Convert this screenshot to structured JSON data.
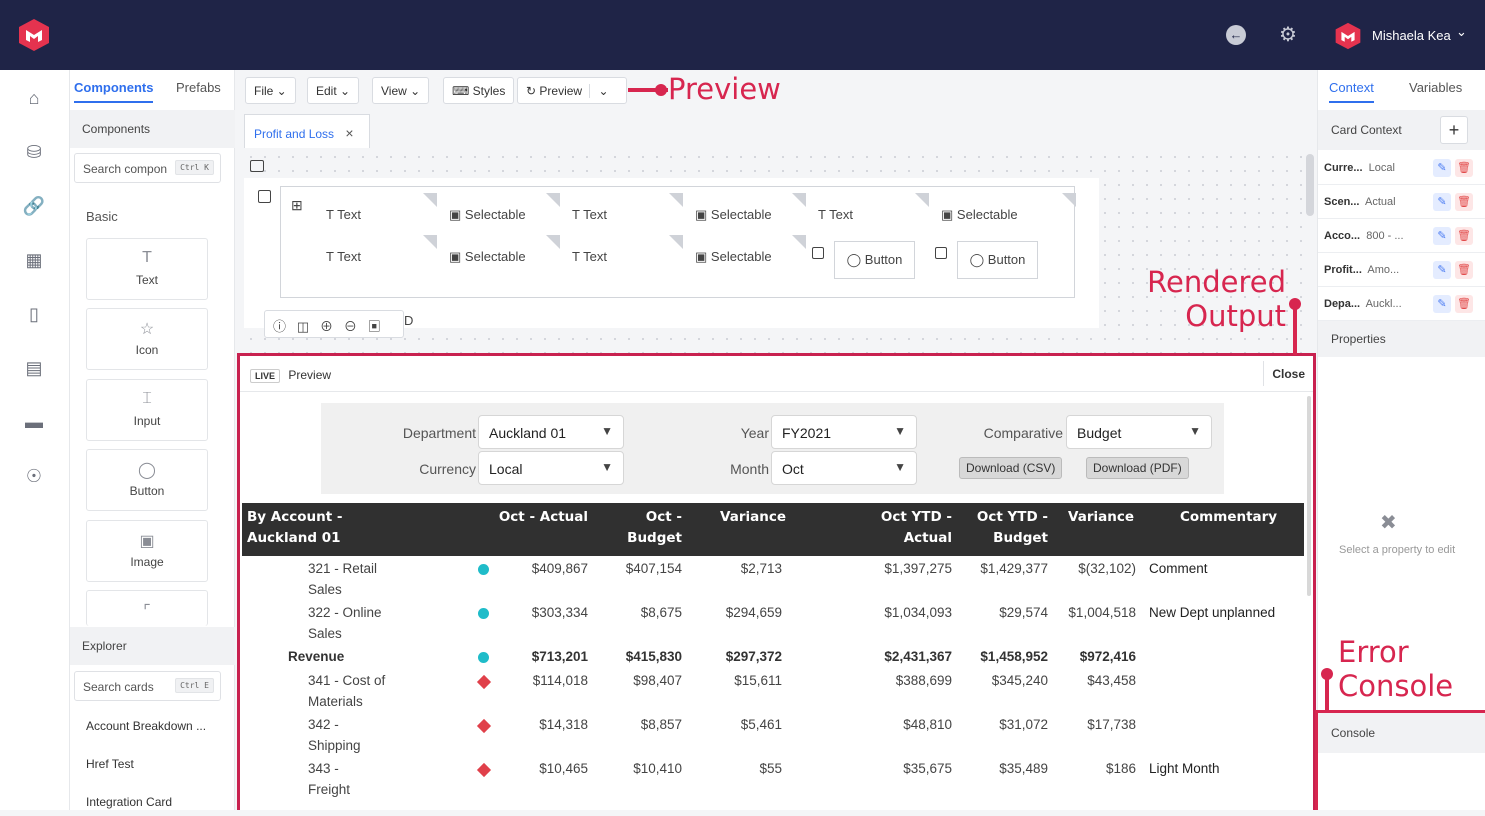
{
  "header": {
    "user_name": "Mishaela Kea",
    "user_chevron": "⌄"
  },
  "rail": {
    "icons": [
      "home-icon",
      "database-icon",
      "link-icon",
      "hierarchy-icon",
      "folder-icon",
      "book-icon",
      "chat-icon",
      "lifebuoy-icon"
    ]
  },
  "left_panel": {
    "tabs": [
      "Components",
      "Prefabs"
    ],
    "components_heading": "Components",
    "search_placeholder": "Search compon",
    "search_shortcut": "Ctrl K",
    "basic_heading": "Basic",
    "tiles": [
      {
        "label": "Text",
        "icon": "T"
      },
      {
        "label": "Icon",
        "icon": "☆"
      },
      {
        "label": "Input",
        "icon": "⌶"
      },
      {
        "label": "Button",
        "icon": "◯"
      },
      {
        "label": "Image",
        "icon": "▣"
      }
    ],
    "explorer_heading": "Explorer",
    "explorer_search": "Search cards",
    "explorer_shortcut": "Ctrl E",
    "explorer_items": [
      "Account Breakdown ...",
      "Href Test",
      "Integration Card"
    ]
  },
  "toolbar": {
    "file": "File",
    "edit": "Edit",
    "view": "View",
    "styles": "Styles",
    "preview": "Preview"
  },
  "document_tab": "Profit and Loss",
  "designer": {
    "row1": [
      "Text",
      "Selectable",
      "Text",
      "Selectable",
      "Text",
      "Selectable"
    ],
    "row2": [
      "Text",
      "Selectable",
      "Text",
      "Selectable",
      "Button",
      "Button"
    ],
    "partial_label": "D"
  },
  "right_panel": {
    "tabs": [
      "Context",
      "Variables"
    ],
    "card_context": "Card Context",
    "rows": [
      {
        "name": "Curre...",
        "value": "Local"
      },
      {
        "name": "Scen...",
        "value": "Actual"
      },
      {
        "name": "Acco...",
        "value": "800 - ..."
      },
      {
        "name": "Profit...",
        "value": "Amo..."
      },
      {
        "name": "Depa...",
        "value": "Auckl..."
      }
    ],
    "properties": "Properties",
    "properties_hint": "Select a property to edit",
    "console": "Console"
  },
  "live": {
    "badge": "LIVE",
    "title": "Preview",
    "close": "Close",
    "filters": {
      "department_label": "Department",
      "department_value": "Auckland 01",
      "year_label": "Year",
      "year_value": "FY2021",
      "comparative_label": "Comparative",
      "comparative_value": "Budget",
      "currency_label": "Currency",
      "currency_value": "Local",
      "month_label": "Month",
      "month_value": "Oct",
      "download_csv": "Download (CSV)",
      "download_pdf": "Download (PDF)"
    },
    "table": {
      "headers": [
        "By Account -\nAuckland 01",
        "Oct - Actual",
        "Oct -\nBudget",
        "Variance",
        "Oct YTD -\nActual",
        "Oct YTD -\nBudget",
        "Variance",
        "Commentary"
      ],
      "rows": [
        {
          "account": "321 - Retail\nSales",
          "status": "dot",
          "cells": [
            "$409,867",
            "$407,154",
            "$2,713",
            "$1,397,275",
            "$1,429,377",
            "$(32,102)"
          ],
          "comment": "Comment",
          "bold": false
        },
        {
          "account": "322 - Online\nSales",
          "status": "dot",
          "cells": [
            "$303,334",
            "$8,675",
            "$294,659",
            "$1,034,093",
            "$29,574",
            "$1,004,518"
          ],
          "comment": "New Dept unplanned",
          "bold": false
        },
        {
          "account": "Revenue",
          "status": "dot",
          "cells": [
            "$713,201",
            "$415,830",
            "$297,372",
            "$2,431,367",
            "$1,458,952",
            "$972,416"
          ],
          "comment": "",
          "bold": true
        },
        {
          "account": "341 - Cost of\nMaterials",
          "status": "diamond",
          "cells": [
            "$114,018",
            "$98,407",
            "$15,611",
            "$388,699",
            "$345,240",
            "$43,458"
          ],
          "comment": "",
          "bold": false
        },
        {
          "account": "342 -\nShipping",
          "status": "diamond",
          "cells": [
            "$14,318",
            "$8,857",
            "$5,461",
            "$48,810",
            "$31,072",
            "$17,738"
          ],
          "comment": "",
          "bold": false
        },
        {
          "account": "343 -\nFreight",
          "status": "diamond",
          "cells": [
            "$10,465",
            "$10,410",
            "$55",
            "$35,675",
            "$35,489",
            "$186"
          ],
          "comment": "Light Month",
          "bold": false
        }
      ]
    }
  },
  "annotations": {
    "preview": "Preview",
    "rendered": "Rendered\nOutput",
    "error": "Error\nConsole"
  },
  "colors": {
    "topbar": "#1f2447",
    "accent": "#d7264f",
    "teal": "#1fbcc9",
    "red": "#e0404a",
    "blue": "#4b7cf2",
    "table_header": "#303030"
  }
}
